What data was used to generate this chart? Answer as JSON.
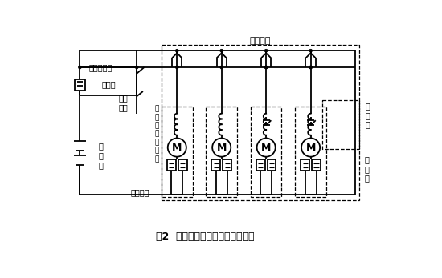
{
  "title": "图2  电动门窗玻璃升降器电路原理",
  "label_zuhe": "组合开关",
  "label_menjichang": "门窗继电器",
  "label_dianhuo": "点火\n开关",
  "label_rongduansi": "熔断丝",
  "label_xudianchi": "蓄\n电\n池",
  "label_duanlu": "断路开关",
  "label_diandongji_field": "电\n动\n机\n磁\n场\n绕\n组",
  "label_diandongji": "电\n动\n机",
  "label_fen": "分\n开\n关",
  "bg_color": "#f0f0f0",
  "line_color": "#000000",
  "fig_width": 5.5,
  "fig_height": 3.47,
  "dpi": 100
}
